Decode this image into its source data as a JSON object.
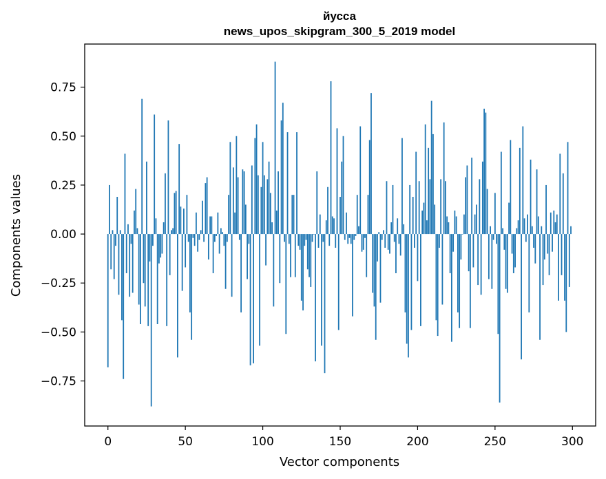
{
  "chart_data": {
    "type": "bar",
    "title_line1": "йусса",
    "title_line2": "news_upos_skipgram_300_5_2019 model",
    "xlabel": "Vector components",
    "ylabel": "Components values",
    "xlim": [
      -15,
      315
    ],
    "ylim": [
      -0.98,
      0.97
    ],
    "xticks": [
      0,
      50,
      100,
      150,
      200,
      250,
      300
    ],
    "xtick_labels": [
      "0",
      "50",
      "100",
      "150",
      "200",
      "250",
      "300"
    ],
    "yticks": [
      -0.75,
      -0.5,
      -0.25,
      0.0,
      0.25,
      0.5,
      0.75
    ],
    "ytick_labels": [
      "−0.75",
      "−0.50",
      "−0.25",
      "0.00",
      "0.25",
      "0.50",
      "0.75"
    ],
    "bar_color": "#1f77b4",
    "values": [
      -0.68,
      0.25,
      -0.18,
      0.02,
      -0.23,
      -0.06,
      0.19,
      -0.31,
      0.02,
      -0.44,
      -0.74,
      0.41,
      -0.2,
      0.05,
      -0.32,
      -0.05,
      -0.3,
      0.12,
      0.23,
      0.03,
      -0.36,
      -0.46,
      0.69,
      -0.25,
      -0.37,
      0.37,
      -0.47,
      -0.14,
      -0.88,
      -0.06,
      0.61,
      0.08,
      -0.46,
      -0.15,
      -0.12,
      -0.1,
      0.06,
      0.31,
      -0.47,
      0.58,
      -0.21,
      0.02,
      0.03,
      0.21,
      0.22,
      -0.63,
      0.46,
      0.14,
      -0.29,
      0.13,
      -0.17,
      0.2,
      -0.04,
      -0.4,
      -0.54,
      -0.02,
      -0.06,
      0.11,
      -0.09,
      -0.03,
      0.02,
      0.17,
      -0.04,
      0.26,
      0.29,
      -0.13,
      0.09,
      0.09,
      -0.2,
      -0.04,
      -0.01,
      0.11,
      -0.1,
      0.03,
      0.01,
      -0.06,
      -0.28,
      -0.04,
      0.2,
      0.47,
      -0.32,
      0.34,
      0.11,
      0.5,
      0.29,
      -0.03,
      -0.4,
      0.33,
      0.32,
      0.15,
      -0.23,
      -0.05,
      -0.67,
      0.35,
      -0.66,
      0.49,
      0.56,
      0.3,
      -0.57,
      0.24,
      0.47,
      0.3,
      -0.16,
      0.28,
      0.37,
      0.21,
      0.06,
      -0.37,
      0.88,
      0.12,
      0.32,
      -0.25,
      0.58,
      0.67,
      -0.04,
      -0.51,
      0.52,
      -0.05,
      -0.22,
      0.2,
      0.2,
      -0.22,
      0.52,
      -0.06,
      -0.08,
      -0.34,
      -0.39,
      -0.06,
      -0.03,
      -0.18,
      -0.22,
      -0.27,
      -0.04,
      0.0,
      -0.65,
      0.32,
      -0.07,
      0.1,
      -0.57,
      -0.04,
      -0.71,
      0.07,
      0.24,
      -0.06,
      0.78,
      0.09,
      0.08,
      -0.07,
      0.54,
      -0.49,
      0.19,
      0.37,
      0.5,
      -0.03,
      0.11,
      -0.05,
      -0.02,
      -0.05,
      -0.42,
      -0.03,
      -0.01,
      0.2,
      0.04,
      0.55,
      -0.09,
      -0.08,
      -0.02,
      -0.22,
      0.2,
      0.48,
      0.72,
      -0.3,
      -0.37,
      -0.54,
      -0.14,
      0.01,
      -0.35,
      -0.03,
      0.02,
      -0.07,
      0.27,
      -0.08,
      -0.1,
      0.06,
      0.25,
      -0.04,
      -0.2,
      0.08,
      -0.05,
      -0.11,
      0.49,
      0.05,
      -0.4,
      -0.56,
      -0.63,
      0.25,
      -0.49,
      0.19,
      -0.07,
      0.42,
      -0.24,
      0.27,
      -0.47,
      0.12,
      0.16,
      0.56,
      0.07,
      0.44,
      0.28,
      0.68,
      0.51,
      0.15,
      -0.44,
      -0.52,
      -0.07,
      0.28,
      -0.36,
      0.57,
      0.27,
      0.09,
      0.06,
      -0.2,
      -0.55,
      -0.09,
      0.12,
      0.09,
      -0.4,
      -0.48,
      -0.13,
      0.0,
      0.1,
      0.29,
      0.35,
      -0.19,
      -0.48,
      0.39,
      -0.17,
      0.1,
      0.15,
      -0.26,
      0.28,
      -0.31,
      0.37,
      0.64,
      0.62,
      0.23,
      -0.23,
      0.04,
      -0.28,
      -0.03,
      0.21,
      -0.05,
      -0.51,
      -0.86,
      0.42,
      0.03,
      -0.08,
      -0.28,
      -0.3,
      0.16,
      0.48,
      -0.1,
      -0.2,
      -0.17,
      0.03,
      0.07,
      0.44,
      -0.64,
      0.55,
      0.08,
      -0.04,
      0.1,
      -0.4,
      0.38,
      0.04,
      -0.07,
      -0.15,
      0.33,
      0.09,
      -0.54,
      0.04,
      -0.26,
      -0.13,
      0.25,
      -0.1,
      -0.21,
      0.11,
      -0.09,
      0.12,
      0.06,
      0.1,
      -0.34,
      0.41,
      -0.21,
      0.31,
      -0.34,
      -0.5,
      0.47,
      -0.27,
      0.04
    ]
  }
}
